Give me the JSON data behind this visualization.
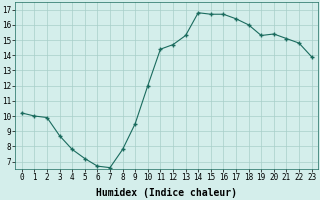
{
  "x": [
    0,
    1,
    2,
    3,
    4,
    5,
    6,
    7,
    8,
    9,
    10,
    11,
    12,
    13,
    14,
    15,
    16,
    17,
    18,
    19,
    20,
    21,
    22,
    23
  ],
  "y": [
    10.2,
    10.0,
    9.9,
    8.7,
    7.8,
    7.2,
    6.7,
    6.6,
    7.8,
    9.5,
    12.0,
    14.4,
    14.7,
    15.3,
    16.8,
    16.7,
    16.7,
    16.4,
    16.0,
    15.3,
    15.4,
    15.1,
    14.8,
    13.9
  ],
  "line_color": "#1a6b5e",
  "marker_color": "#1a6b5e",
  "bg_color": "#d4eeeb",
  "grid_color": "#a8cfc9",
  "xlabel": "Humidex (Indice chaleur)",
  "ylabel_ticks": [
    7,
    8,
    9,
    10,
    11,
    12,
    13,
    14,
    15,
    16,
    17
  ],
  "xtick_labels": [
    "0",
    "1",
    "2",
    "3",
    "4",
    "5",
    "6",
    "7",
    "8",
    "9",
    "10",
    "11",
    "12",
    "13",
    "14",
    "15",
    "16",
    "17",
    "18",
    "19",
    "20",
    "21",
    "22",
    "23"
  ],
  "ylim": [
    6.5,
    17.5
  ],
  "xlim": [
    -0.5,
    23.5
  ],
  "axis_fontsize": 5.5,
  "xlabel_fontsize": 7.0
}
